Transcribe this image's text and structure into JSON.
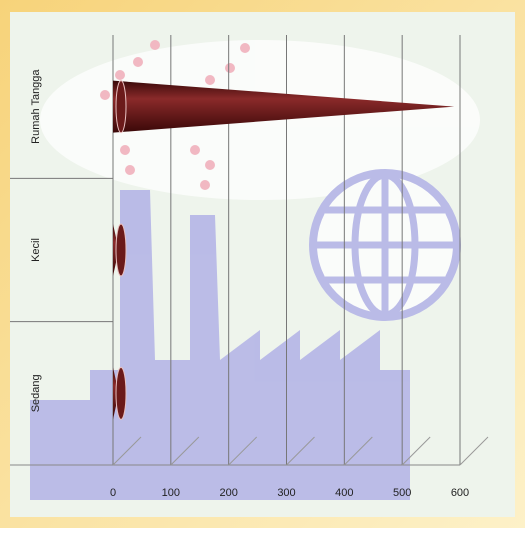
{
  "chart_data": {
    "type": "cone-bar",
    "orientation": "horizontal",
    "categories": [
      "Rumah Tangga",
      "Kecil",
      "Sedang"
    ],
    "values": [
      590,
      10,
      10
    ],
    "color": "#6b1a1a",
    "xlim": [
      0,
      600
    ],
    "xticks": [
      0,
      100,
      200,
      300,
      400,
      500,
      600
    ],
    "grid": true
  }
}
